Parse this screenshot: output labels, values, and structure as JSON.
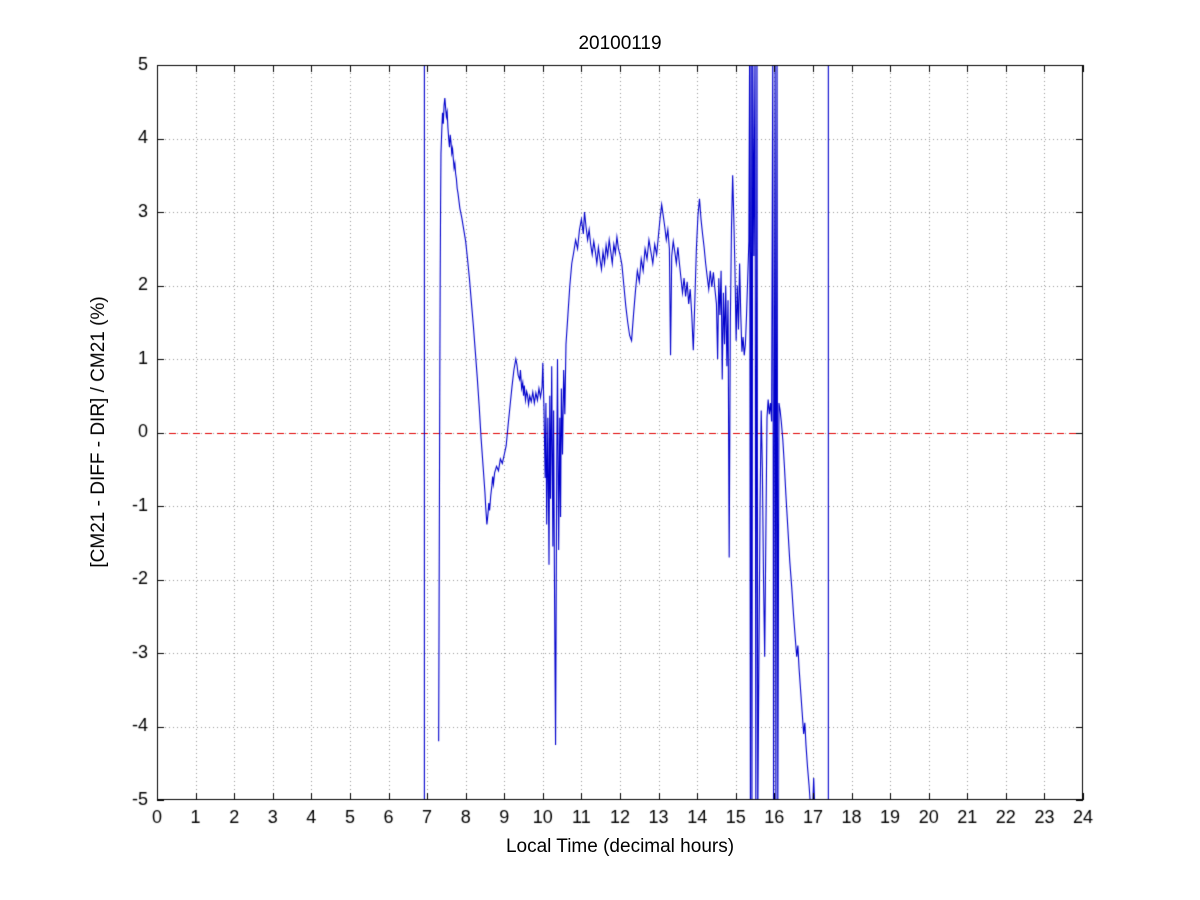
{
  "chart_data": {
    "type": "line",
    "title": "20100119",
    "xlabel": "Local Time (decimal hours)",
    "ylabel": "[CM21 - DIFF - DIR] / CM21 (%)",
    "xlim": [
      0,
      24
    ],
    "ylim": [
      -5,
      5
    ],
    "xticks": [
      0,
      1,
      2,
      3,
      4,
      5,
      6,
      7,
      8,
      9,
      10,
      11,
      12,
      13,
      14,
      15,
      16,
      17,
      18,
      19,
      20,
      21,
      22,
      23,
      24
    ],
    "yticks": [
      -5,
      -4,
      -3,
      -2,
      -1,
      0,
      1,
      2,
      3,
      4,
      5
    ],
    "grid": true,
    "background": "#ffffff",
    "axis_color": "#000000",
    "grid_color": "#999999",
    "zero_line": {
      "y": 0,
      "color": "#e00000",
      "dashed": true
    },
    "series": [
      {
        "name": "(CM21 - DIFF - DIR) / CM21",
        "color": "#0000cc",
        "points": [
          [
            6.93,
            -5.3
          ],
          [
            6.93,
            5.3
          ],
          null,
          [
            7.3,
            -4.2
          ],
          [
            7.31,
            -2.6
          ],
          [
            7.32,
            -0.9
          ],
          [
            7.33,
            0.8
          ],
          [
            7.34,
            2.1
          ],
          [
            7.35,
            3.1
          ],
          [
            7.36,
            3.8
          ],
          [
            7.37,
            3.95
          ],
          [
            7.38,
            4.1
          ],
          [
            7.4,
            4.35
          ],
          [
            7.42,
            4.2
          ],
          [
            7.44,
            4.45
          ],
          [
            7.46,
            4.55
          ],
          [
            7.48,
            4.42
          ],
          [
            7.5,
            4.3
          ],
          [
            7.52,
            4.36
          ],
          [
            7.54,
            4.15
          ],
          [
            7.56,
            4.0
          ],
          [
            7.58,
            3.88
          ],
          [
            7.6,
            4.05
          ],
          [
            7.62,
            3.95
          ],
          [
            7.64,
            3.8
          ],
          [
            7.66,
            3.86
          ],
          [
            7.68,
            3.72
          ],
          [
            7.7,
            3.6
          ],
          [
            7.72,
            3.66
          ],
          [
            7.74,
            3.52
          ],
          [
            7.76,
            3.45
          ],
          [
            7.78,
            3.32
          ],
          [
            7.8,
            3.26
          ],
          [
            7.85,
            3.05
          ],
          [
            7.9,
            2.92
          ],
          [
            7.95,
            2.76
          ],
          [
            8.0,
            2.6
          ],
          [
            8.05,
            2.35
          ],
          [
            8.1,
            2.08
          ],
          [
            8.15,
            1.76
          ],
          [
            8.2,
            1.45
          ],
          [
            8.25,
            1.1
          ],
          [
            8.3,
            0.75
          ],
          [
            8.35,
            0.36
          ],
          [
            8.4,
            -0.08
          ],
          [
            8.45,
            -0.45
          ],
          [
            8.5,
            -0.82
          ],
          [
            8.52,
            -1.02
          ],
          [
            8.55,
            -1.25
          ],
          [
            8.58,
            -1.1
          ],
          [
            8.6,
            -0.96
          ],
          [
            8.62,
            -1.06
          ],
          [
            8.65,
            -0.86
          ],
          [
            8.68,
            -0.72
          ],
          [
            8.7,
            -0.6
          ],
          [
            8.72,
            -0.7
          ],
          [
            8.75,
            -0.55
          ],
          [
            8.8,
            -0.46
          ],
          [
            8.85,
            -0.52
          ],
          [
            8.9,
            -0.36
          ],
          [
            8.95,
            -0.42
          ],
          [
            9.0,
            -0.3
          ],
          [
            9.05,
            -0.18
          ],
          [
            9.1,
            0.1
          ],
          [
            9.15,
            0.36
          ],
          [
            9.2,
            0.62
          ],
          [
            9.25,
            0.85
          ],
          [
            9.3,
            1.0
          ],
          [
            9.33,
            0.92
          ],
          [
            9.36,
            0.78
          ],
          [
            9.4,
            0.72
          ],
          [
            9.42,
            0.85
          ],
          [
            9.45,
            0.6
          ],
          [
            9.48,
            0.68
          ],
          [
            9.5,
            0.5
          ],
          [
            9.52,
            0.64
          ],
          [
            9.55,
            0.44
          ],
          [
            9.58,
            0.56
          ],
          [
            9.6,
            0.52
          ],
          [
            9.63,
            0.38
          ],
          [
            9.66,
            0.5
          ],
          [
            9.7,
            0.42
          ],
          [
            9.74,
            0.55
          ],
          [
            9.78,
            0.4
          ],
          [
            9.82,
            0.54
          ],
          [
            9.86,
            0.44
          ],
          [
            9.9,
            0.6
          ],
          [
            9.94,
            0.48
          ],
          [
            9.98,
            0.62
          ],
          [
            10.0,
            0.95
          ],
          [
            10.03,
            0.3
          ],
          [
            10.06,
            -0.62
          ],
          [
            10.08,
            0.4
          ],
          [
            10.1,
            -1.25
          ],
          [
            10.13,
            0.2
          ],
          [
            10.16,
            -1.8
          ],
          [
            10.18,
            0.5
          ],
          [
            10.2,
            -0.9
          ],
          [
            10.23,
            0.9
          ],
          [
            10.26,
            -1.55
          ],
          [
            10.28,
            0.3
          ],
          [
            10.3,
            -1.9
          ],
          [
            10.33,
            -4.25
          ],
          [
            10.36,
            -0.5
          ],
          [
            10.38,
            1.0
          ],
          [
            10.41,
            -1.6
          ],
          [
            10.44,
            0.2
          ],
          [
            10.46,
            -1.15
          ],
          [
            10.48,
            0.6
          ],
          [
            10.51,
            -0.3
          ],
          [
            10.54,
            0.85
          ],
          [
            10.57,
            0.25
          ],
          [
            10.6,
            1.2
          ],
          [
            10.65,
            1.6
          ],
          [
            10.7,
            2.0
          ],
          [
            10.75,
            2.3
          ],
          [
            10.8,
            2.45
          ],
          [
            10.85,
            2.62
          ],
          [
            10.9,
            2.5
          ],
          [
            10.95,
            2.76
          ],
          [
            11.0,
            2.9
          ],
          [
            11.05,
            2.7
          ],
          [
            11.08,
            3.0
          ],
          [
            11.12,
            2.8
          ],
          [
            11.16,
            2.62
          ],
          [
            11.2,
            2.76
          ],
          [
            11.24,
            2.56
          ],
          [
            11.28,
            2.42
          ],
          [
            11.32,
            2.6
          ],
          [
            11.36,
            2.46
          ],
          [
            11.4,
            2.3
          ],
          [
            11.44,
            2.52
          ],
          [
            11.48,
            2.36
          ],
          [
            11.52,
            2.22
          ],
          [
            11.56,
            2.46
          ],
          [
            11.6,
            2.3
          ],
          [
            11.64,
            2.55
          ],
          [
            11.68,
            2.4
          ],
          [
            11.72,
            2.62
          ],
          [
            11.76,
            2.46
          ],
          [
            11.8,
            2.3
          ],
          [
            11.84,
            2.56
          ],
          [
            11.88,
            2.44
          ],
          [
            11.92,
            2.66
          ],
          [
            11.96,
            2.5
          ],
          [
            12.0,
            2.42
          ],
          [
            12.05,
            2.28
          ],
          [
            12.1,
            2.0
          ],
          [
            12.15,
            1.72
          ],
          [
            12.2,
            1.5
          ],
          [
            12.25,
            1.32
          ],
          [
            12.3,
            1.25
          ],
          [
            12.35,
            1.6
          ],
          [
            12.4,
            1.92
          ],
          [
            12.45,
            2.2
          ],
          [
            12.5,
            2.05
          ],
          [
            12.55,
            2.36
          ],
          [
            12.6,
            2.2
          ],
          [
            12.65,
            2.5
          ],
          [
            12.7,
            2.36
          ],
          [
            12.75,
            2.62
          ],
          [
            12.8,
            2.46
          ],
          [
            12.85,
            2.3
          ],
          [
            12.9,
            2.56
          ],
          [
            12.95,
            2.42
          ],
          [
            13.0,
            2.7
          ],
          [
            13.04,
            2.92
          ],
          [
            13.08,
            3.1
          ],
          [
            13.12,
            2.95
          ],
          [
            13.16,
            2.8
          ],
          [
            13.2,
            2.62
          ],
          [
            13.24,
            2.76
          ],
          [
            13.28,
            2.5
          ],
          [
            13.31,
            1.05
          ],
          [
            13.34,
            2.4
          ],
          [
            13.38,
            2.6
          ],
          [
            13.42,
            2.46
          ],
          [
            13.46,
            2.3
          ],
          [
            13.5,
            2.52
          ],
          [
            13.54,
            2.3
          ],
          [
            13.58,
            2.1
          ],
          [
            13.62,
            1.9
          ],
          [
            13.66,
            2.1
          ],
          [
            13.7,
            1.85
          ],
          [
            13.74,
            2.05
          ],
          [
            13.78,
            1.75
          ],
          [
            13.82,
            1.95
          ],
          [
            13.86,
            1.6
          ],
          [
            13.9,
            1.12
          ],
          [
            13.94,
            1.8
          ],
          [
            13.98,
            2.5
          ],
          [
            14.02,
            2.95
          ],
          [
            14.06,
            3.18
          ],
          [
            14.1,
            2.9
          ],
          [
            14.14,
            2.7
          ],
          [
            14.18,
            2.52
          ],
          [
            14.22,
            2.3
          ],
          [
            14.26,
            2.12
          ],
          [
            14.3,
            1.95
          ],
          [
            14.34,
            2.2
          ],
          [
            14.38,
            1.98
          ],
          [
            14.42,
            2.18
          ],
          [
            14.46,
            1.95
          ],
          [
            14.5,
            1.75
          ],
          [
            14.53,
            1.0
          ],
          [
            14.56,
            2.1
          ],
          [
            14.59,
            1.6
          ],
          [
            14.62,
            2.2
          ],
          [
            14.65,
            0.72
          ],
          [
            14.68,
            1.9
          ],
          [
            14.71,
            1.2
          ],
          [
            14.74,
            2.0
          ],
          [
            14.77,
            0.9
          ],
          [
            14.8,
            1.8
          ],
          [
            14.83,
            -1.7
          ],
          [
            14.86,
            1.5
          ],
          [
            14.89,
            2.8
          ],
          [
            14.92,
            3.5
          ],
          [
            14.95,
            2.9
          ],
          [
            14.98,
            2.2
          ],
          [
            15.01,
            1.25
          ],
          [
            15.04,
            2.0
          ],
          [
            15.07,
            1.4
          ],
          [
            15.1,
            2.3
          ],
          [
            15.13,
            1.6
          ],
          [
            15.16,
            1.1
          ],
          [
            15.19,
            1.3
          ],
          [
            15.22,
            1.05
          ],
          [
            15.25,
            1.2
          ],
          [
            15.28,
            1.6
          ],
          [
            15.31,
            2.1
          ],
          [
            15.34,
            2.6
          ],
          [
            15.36,
            5.3
          ],
          [
            15.38,
            -5.3
          ],
          [
            15.4,
            5.3
          ],
          [
            15.42,
            -5.3
          ],
          [
            15.44,
            5.3
          ],
          [
            15.47,
            2.4
          ],
          [
            15.5,
            5.3
          ],
          [
            15.52,
            -5.3
          ],
          [
            15.55,
            5.3
          ],
          [
            15.57,
            -5.3
          ],
          [
            15.6,
            -3.1
          ],
          [
            15.63,
            -1.0
          ],
          [
            15.66,
            0.3
          ],
          [
            15.69,
            -0.5
          ],
          [
            15.72,
            -2.0
          ],
          [
            15.75,
            -3.05
          ],
          [
            15.78,
            -1.4
          ],
          [
            15.81,
            0.2
          ],
          [
            15.84,
            0.45
          ],
          [
            15.87,
            0.25
          ],
          [
            15.9,
            0.4
          ],
          [
            15.93,
            0.15
          ],
          [
            15.96,
            5.3
          ],
          [
            15.98,
            -5.3
          ],
          [
            16.02,
            5.3
          ],
          [
            16.04,
            -5.3
          ],
          [
            16.07,
            5.3
          ],
          [
            16.09,
            -5.3
          ],
          [
            16.12,
            0.4
          ],
          [
            16.15,
            0.3
          ],
          [
            16.18,
            0.15
          ],
          [
            16.22,
            -0.1
          ],
          [
            16.26,
            -0.45
          ],
          [
            16.3,
            -0.85
          ],
          [
            16.35,
            -1.3
          ],
          [
            16.4,
            -1.75
          ],
          [
            16.45,
            -2.1
          ],
          [
            16.5,
            -2.5
          ],
          [
            16.55,
            -2.85
          ],
          [
            16.58,
            -3.05
          ],
          [
            16.61,
            -2.9
          ],
          [
            16.64,
            -3.2
          ],
          [
            16.68,
            -3.5
          ],
          [
            16.72,
            -3.8
          ],
          [
            16.76,
            -4.1
          ],
          [
            16.79,
            -3.95
          ],
          [
            16.82,
            -4.25
          ],
          [
            16.86,
            -4.55
          ],
          [
            16.9,
            -4.8
          ],
          [
            16.94,
            -5.1
          ],
          [
            16.98,
            -5.3
          ],
          [
            17.02,
            -4.7
          ],
          [
            17.06,
            -5.3
          ],
          null,
          [
            17.4,
            -5.3
          ],
          [
            17.4,
            5.3
          ]
        ]
      }
    ]
  }
}
